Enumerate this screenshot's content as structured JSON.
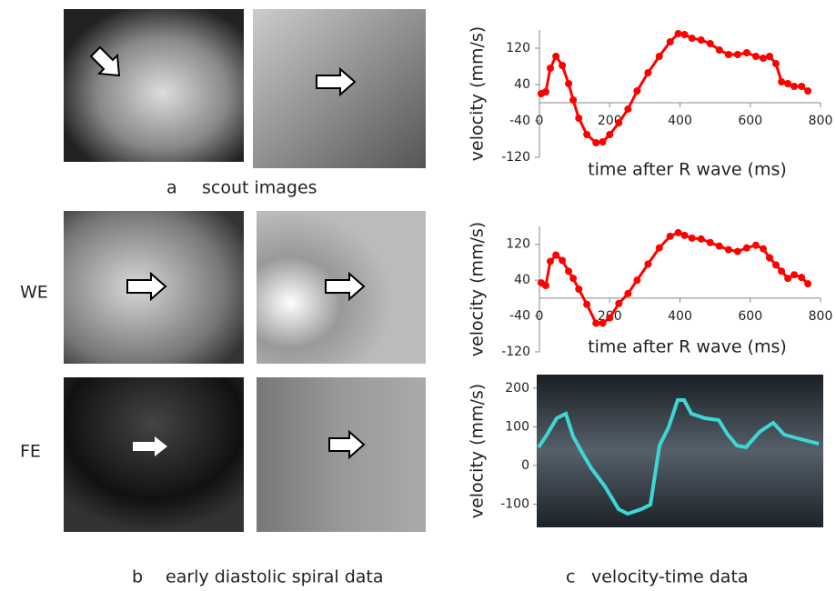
{
  "panels": {
    "a": {
      "letter": "a",
      "caption": "scout images"
    },
    "b": {
      "letter": "b",
      "caption": "early diastolic spiral data",
      "rows": [
        "WE",
        "FE"
      ]
    },
    "c": {
      "letter": "c",
      "caption": "velocity-time  data"
    }
  },
  "chart_data": [
    {
      "type": "line",
      "xlabel": "time after R wave (ms)",
      "ylabel": "velocity (mm/s)",
      "color": "#ff0000",
      "xlim": [
        0,
        800
      ],
      "xticks": [
        0,
        200,
        400,
        600,
        800
      ],
      "ylim": [
        -120,
        160
      ],
      "yticks": [
        -120,
        -40,
        40,
        120
      ],
      "series": [
        {
          "name": "velocity",
          "color": "#ff0000",
          "x": [
            5,
            18,
            31,
            47,
            65,
            83,
            96,
            112,
            135,
            161,
            180,
            200,
            226,
            252,
            278,
            309,
            341,
            372,
            395,
            413,
            434,
            460,
            486,
            512,
            538,
            564,
            590,
            616,
            637,
            655,
            673,
            689,
            707,
            725,
            746,
            764
          ],
          "values": [
            20,
            24,
            76,
            102,
            82,
            42,
            6,
            -34,
            -70,
            -88,
            -86,
            -70,
            -44,
            -14,
            26,
            66,
            102,
            134,
            152,
            150,
            142,
            138,
            130,
            116,
            106,
            106,
            110,
            102,
            98,
            102,
            86,
            46,
            42,
            36,
            36,
            26
          ]
        }
      ]
    },
    {
      "type": "line",
      "xlabel": "time after R wave (ms)",
      "ylabel": "velocity (mm/s)",
      "color": "#ff0000",
      "xlim": [
        0,
        800
      ],
      "xticks": [
        0,
        200,
        400,
        600,
        800
      ],
      "ylim": [
        -120,
        160
      ],
      "yticks": [
        -120,
        -40,
        40,
        120
      ],
      "series": [
        {
          "name": "velocity",
          "color": "#ff0000",
          "x": [
            5,
            18,
            31,
            47,
            65,
            83,
            96,
            112,
            135,
            161,
            180,
            200,
            226,
            252,
            278,
            309,
            341,
            372,
            395,
            413,
            434,
            460,
            486,
            512,
            538,
            564,
            590,
            616,
            637,
            655,
            673,
            689,
            707,
            725,
            746,
            764
          ],
          "values": [
            34,
            28,
            82,
            96,
            84,
            60,
            44,
            20,
            -14,
            -56,
            -56,
            -44,
            -12,
            10,
            40,
            76,
            112,
            138,
            146,
            140,
            134,
            132,
            124,
            116,
            108,
            104,
            112,
            118,
            110,
            90,
            74,
            60,
            44,
            52,
            46,
            32
          ]
        }
      ]
    },
    {
      "type": "doppler",
      "ylabel": "velocity (mm/s)",
      "ylim": [
        -160,
        235
      ],
      "yticks": [
        -100,
        0,
        100,
        200
      ]
    }
  ]
}
